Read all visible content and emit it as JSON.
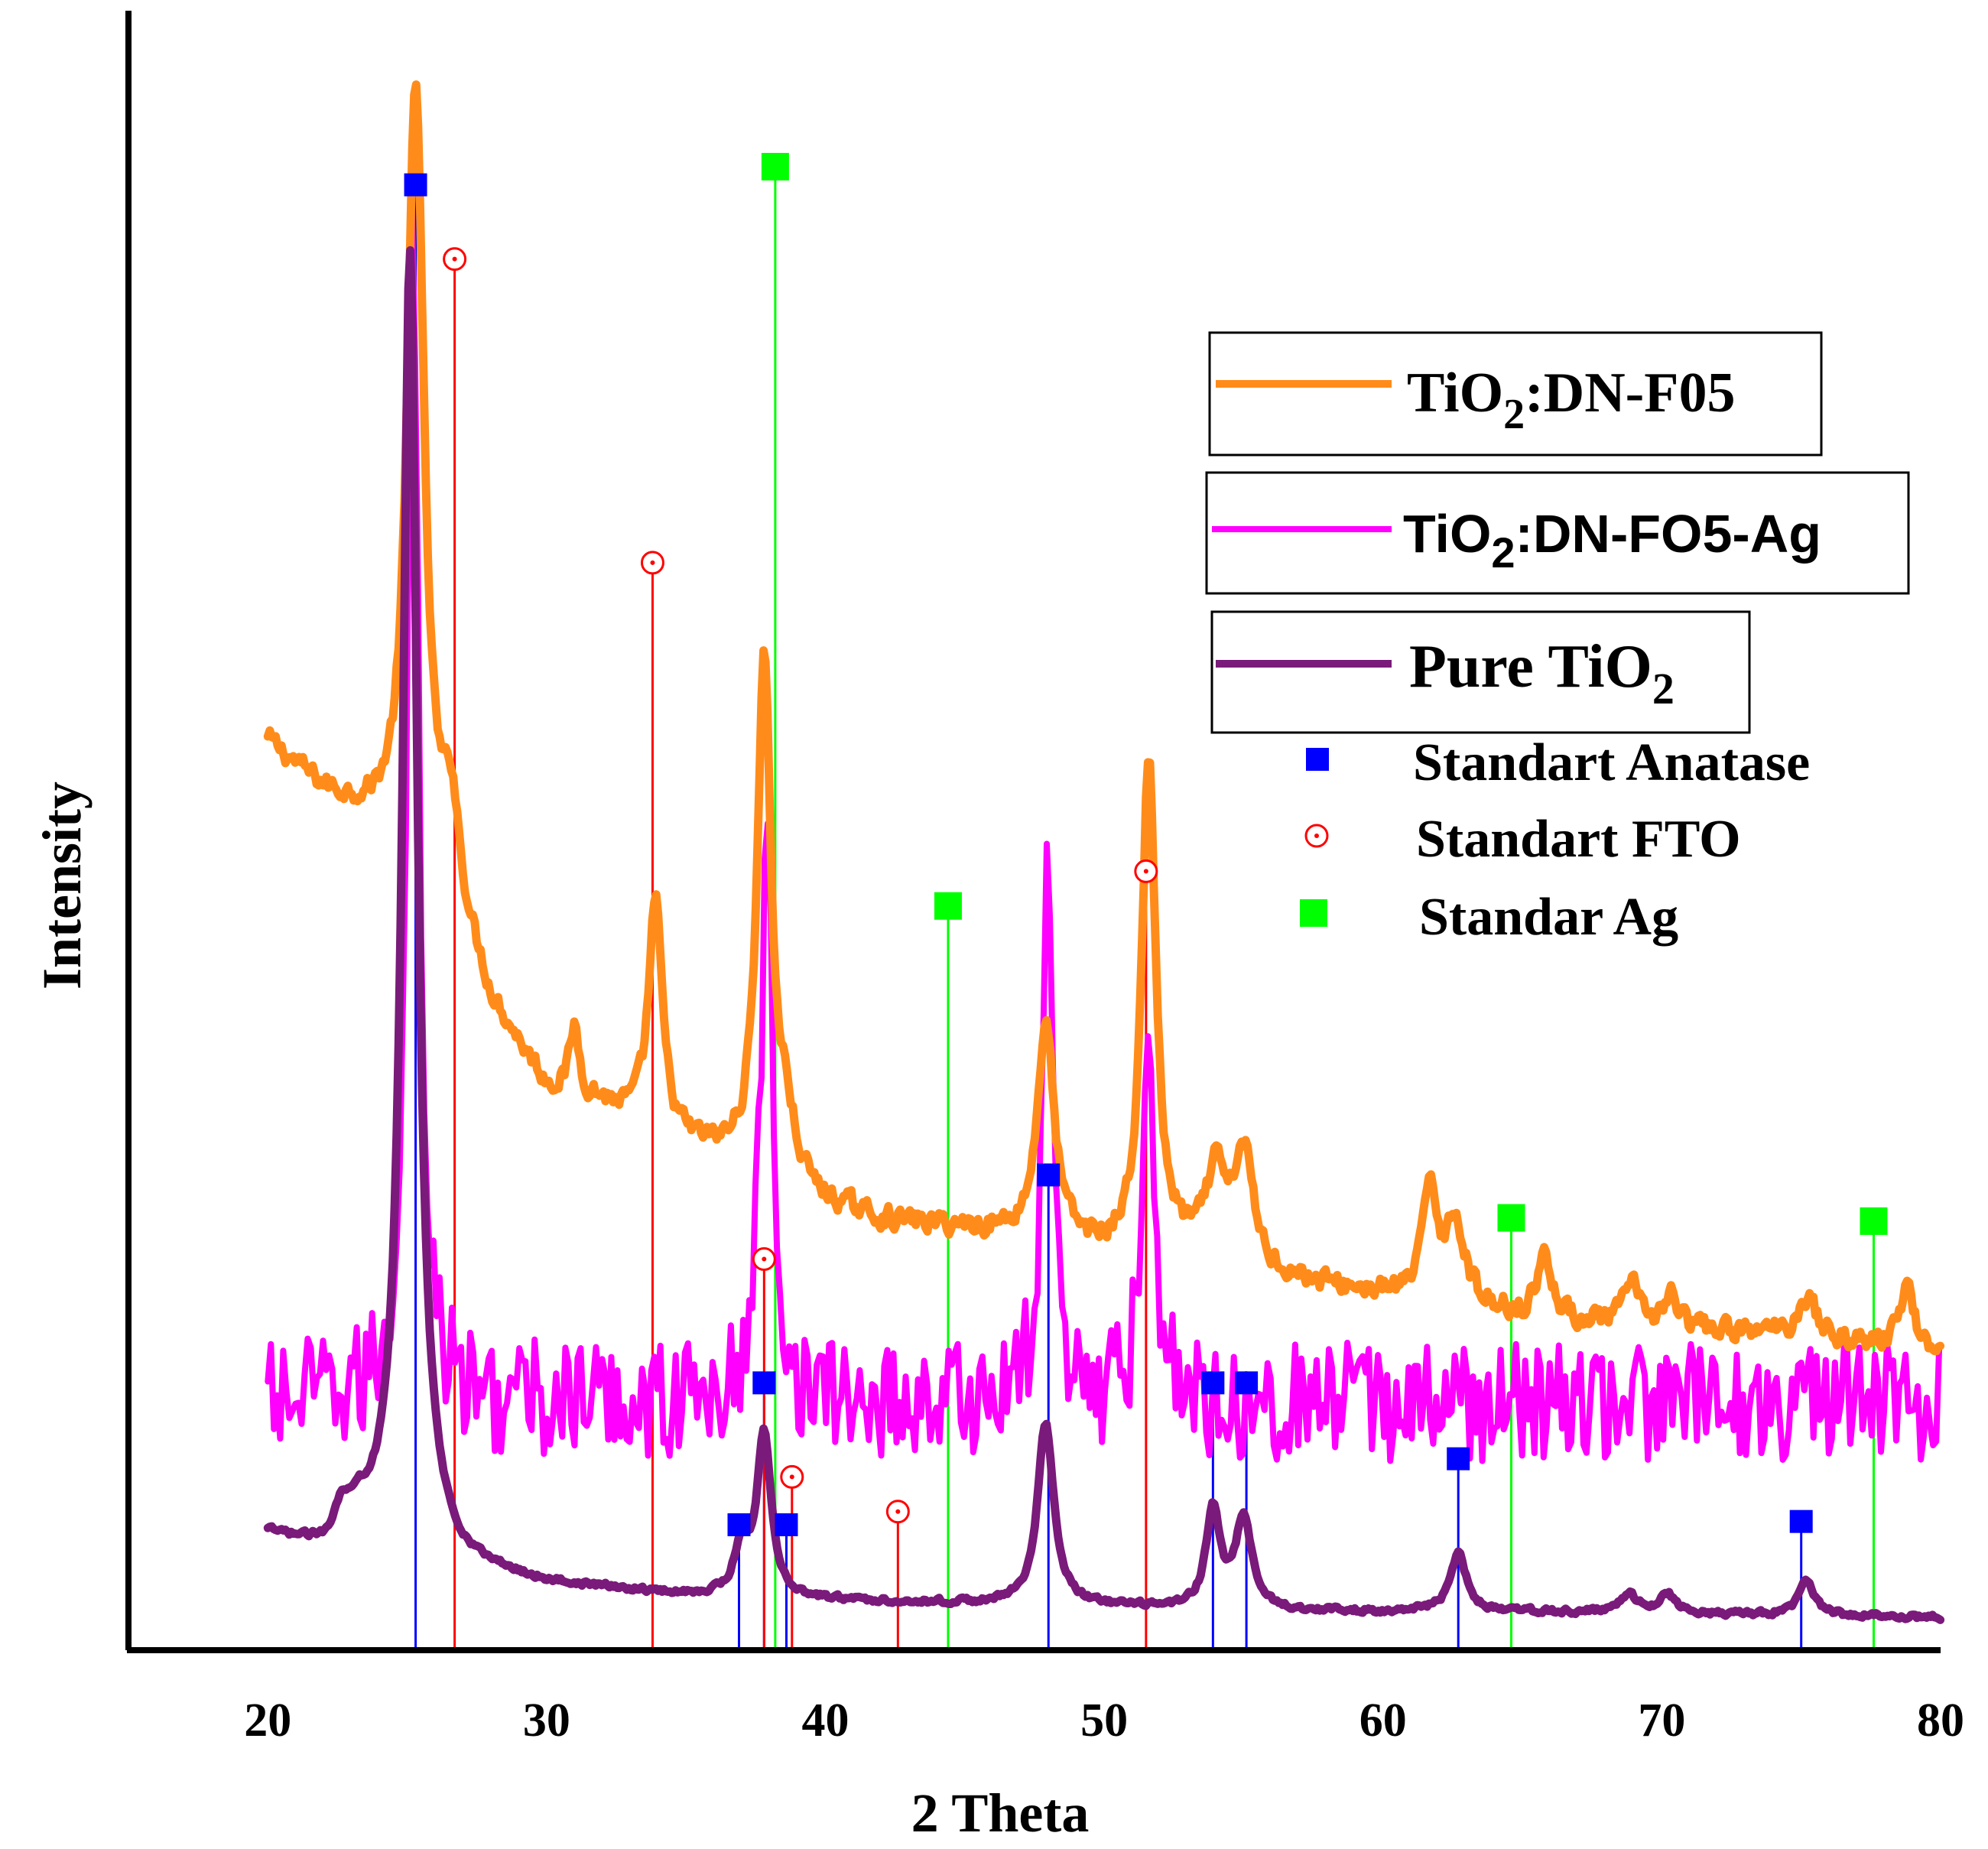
{
  "chart_data": {
    "type": "line",
    "title": "",
    "xlabel": "2 Theta",
    "ylabel": "Intensity",
    "xlim": [
      15,
      80
    ],
    "ylim": [
      0,
      100
    ],
    "grid": false,
    "x_ticks": [
      "20",
      "30",
      "40",
      "50",
      "60",
      "70",
      "80"
    ],
    "x_tick_values": [
      20,
      30,
      40,
      50,
      60,
      70,
      80
    ],
    "legend_position": "top-right",
    "legend": {
      "series": [
        {
          "pre": "TiO",
          "sub": "2",
          "post": ":DN-F05",
          "color": "#ff8c1a",
          "font": "serif"
        },
        {
          "pre": "TiO",
          "sub": "2",
          "post": ":DN-FO5-Ag",
          "color": "#ff00ff",
          "font": "sans"
        },
        {
          "pre": "Pure TiO",
          "sub": "2",
          "post": "",
          "color": "#7a1a7a",
          "font": "serif"
        }
      ],
      "standards": [
        {
          "label": "Standart Anatase",
          "marker": "blue-square",
          "color": "#0000ff"
        },
        {
          "label": "Standart FTO",
          "marker": "red-circle-dot",
          "color": "#ff0000"
        },
        {
          "label": "Standar Ag",
          "marker": "green-square",
          "color": "#00ff00"
        }
      ]
    },
    "series": [
      {
        "name": "TiO2:DN-F05",
        "color": "#ff8c1a",
        "style": "smooth",
        "baseline": [
          [
            20,
            55
          ],
          [
            22,
            52
          ],
          [
            24,
            50
          ],
          [
            25.5,
            48
          ],
          [
            26.5,
            46
          ],
          [
            28,
            39
          ],
          [
            30,
            34
          ],
          [
            32,
            33
          ],
          [
            34,
            31
          ],
          [
            36,
            30
          ],
          [
            38,
            29
          ],
          [
            40,
            27
          ],
          [
            42,
            26
          ],
          [
            45,
            25.5
          ],
          [
            48,
            25
          ],
          [
            50,
            24
          ],
          [
            53,
            24
          ],
          [
            55,
            23
          ],
          [
            58,
            22
          ],
          [
            62,
            21
          ],
          [
            66,
            20
          ],
          [
            70,
            19.5
          ],
          [
            75,
            19
          ],
          [
            80,
            18
          ]
        ],
        "noise": 1.0,
        "peaks": [
          {
            "x": 25.3,
            "h": 47,
            "w": 0.35
          },
          {
            "x": 26.6,
            "h": 5,
            "w": 0.3
          },
          {
            "x": 31.0,
            "h": 4,
            "w": 0.2
          },
          {
            "x": 33.9,
            "h": 14,
            "w": 0.3
          },
          {
            "x": 37.8,
            "h": 31,
            "w": 0.3
          },
          {
            "x": 38.6,
            "h": 3,
            "w": 0.3
          },
          {
            "x": 47.9,
            "h": 13,
            "w": 0.35
          },
          {
            "x": 51.6,
            "h": 30,
            "w": 0.3
          },
          {
            "x": 54.0,
            "h": 5,
            "w": 0.4
          },
          {
            "x": 55.0,
            "h": 7,
            "w": 0.4
          },
          {
            "x": 61.7,
            "h": 7,
            "w": 0.3
          },
          {
            "x": 62.6,
            "h": 5,
            "w": 0.4
          },
          {
            "x": 65.8,
            "h": 4,
            "w": 0.3
          },
          {
            "x": 68.9,
            "h": 2.5,
            "w": 0.3
          },
          {
            "x": 70.3,
            "h": 2,
            "w": 0.3
          },
          {
            "x": 75.2,
            "h": 2.5,
            "w": 0.4
          },
          {
            "x": 78.8,
            "h": 4,
            "w": 0.3
          }
        ]
      },
      {
        "name": "TiO2:DN-FO5-Ag",
        "color": "#ff00ff",
        "style": "noisy",
        "baseline": [
          [
            20,
            15
          ],
          [
            80,
            15
          ]
        ],
        "noise": 3.6,
        "peaks": [
          {
            "x": 25.2,
            "h": 73,
            "w": 0.25
          },
          {
            "x": 37.9,
            "h": 36,
            "w": 0.25
          },
          {
            "x": 48.0,
            "h": 32,
            "w": 0.25
          },
          {
            "x": 51.6,
            "h": 25,
            "w": 0.25
          }
        ]
      },
      {
        "name": "Pure TiO2",
        "color": "#7a1a7a",
        "style": "smooth",
        "baseline": [
          [
            20,
            7
          ],
          [
            22,
            6
          ],
          [
            24,
            7
          ],
          [
            25,
            7
          ],
          [
            27,
            5
          ],
          [
            30,
            4
          ],
          [
            35,
            3.3
          ],
          [
            40,
            3
          ],
          [
            45,
            2.8
          ],
          [
            50,
            2.6
          ],
          [
            55,
            2.4
          ],
          [
            60,
            2.3
          ],
          [
            65,
            2.3
          ],
          [
            70,
            2.2
          ],
          [
            75,
            2.1
          ],
          [
            80,
            2
          ]
        ],
        "noise": 0.25,
        "peaks": [
          {
            "x": 22.6,
            "h": 1.5,
            "w": 0.3
          },
          {
            "x": 23.2,
            "h": 1.5,
            "w": 0.4
          },
          {
            "x": 25.1,
            "h": 78,
            "w": 0.32
          },
          {
            "x": 37.0,
            "h": 3,
            "w": 0.3
          },
          {
            "x": 37.8,
            "h": 10,
            "w": 0.3
          },
          {
            "x": 47.9,
            "h": 11,
            "w": 0.35
          },
          {
            "x": 53.9,
            "h": 6,
            "w": 0.3
          },
          {
            "x": 55.0,
            "h": 5.5,
            "w": 0.35
          },
          {
            "x": 62.7,
            "h": 3.5,
            "w": 0.35
          },
          {
            "x": 68.8,
            "h": 1.2,
            "w": 0.35
          },
          {
            "x": 70.2,
            "h": 1.2,
            "w": 0.35
          },
          {
            "x": 75.2,
            "h": 2,
            "w": 0.35
          }
        ]
      }
    ],
    "reference_sticks": {
      "anatase": {
        "color": "#0000ff",
        "marker": "square",
        "positions": [
          [
            25.3,
            88.8
          ],
          [
            36.9,
            7.6
          ],
          [
            37.8,
            16.2
          ],
          [
            38.6,
            7.6
          ],
          [
            48.0,
            28.8
          ],
          [
            53.9,
            16.2
          ],
          [
            55.1,
            16.2
          ],
          [
            62.7,
            11.6
          ],
          [
            75.0,
            7.8
          ]
        ]
      },
      "fto": {
        "color": "#ff0000",
        "marker": "circle-dot",
        "positions": [
          [
            26.7,
            84.3
          ],
          [
            33.8,
            65.9
          ],
          [
            37.8,
            23.7
          ],
          [
            38.8,
            10.5
          ],
          [
            42.6,
            8.4
          ],
          [
            51.5,
            47.2
          ]
        ]
      },
      "ag": {
        "color": "#00ff00",
        "marker": "square",
        "positions": [
          [
            38.2,
            89.9
          ],
          [
            44.4,
            45.1
          ],
          [
            64.6,
            26.2
          ],
          [
            77.6,
            26.0
          ]
        ]
      }
    }
  }
}
